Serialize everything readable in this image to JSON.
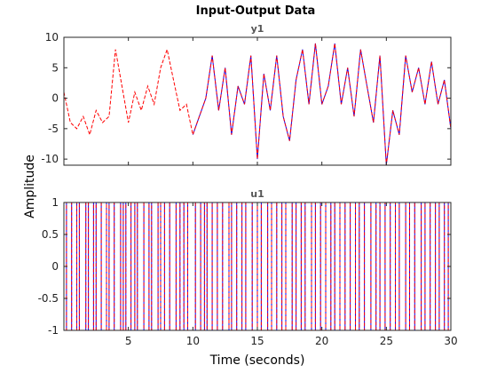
{
  "chart_data": {
    "type": "line",
    "title": "Input-Output Data",
    "xlabel": "Time (seconds)",
    "ylabel": "Amplitude",
    "xlim": [
      0,
      30
    ],
    "xticks": [
      "5",
      "10",
      "15",
      "20",
      "25",
      "30"
    ],
    "colors": {
      "series1": "#0000ff",
      "series2": "#ff0000",
      "axes": "#262626"
    },
    "panels": [
      {
        "subtitle": "y1",
        "ylim": [
          -11,
          10
        ],
        "yticks": [
          "10",
          "5",
          "0",
          "-5",
          "-10"
        ],
        "series": [
          {
            "style": "solid",
            "color": "#0000ff",
            "x": [
              10,
              10.5,
              11,
              11.5,
              12,
              12.5,
              13,
              13.5,
              14,
              14.5,
              15,
              15.5,
              16,
              16.5,
              17,
              17.5,
              18,
              18.5,
              19,
              19.5,
              20,
              20.5,
              21,
              21.5,
              22,
              22.5,
              23,
              23.5,
              24,
              24.5,
              25,
              25.5,
              26,
              26.5,
              27,
              27.5,
              28,
              28.5,
              29,
              29.5,
              30
            ],
            "y": [
              -6,
              -3,
              0,
              7,
              -2,
              5,
              -6,
              2,
              -1,
              7,
              -10,
              4,
              -2,
              7,
              -3,
              -7,
              3,
              8,
              -1,
              9,
              -1,
              2,
              9,
              -1,
              5,
              -3,
              8,
              2,
              -4,
              7,
              -11,
              -2,
              -6,
              7,
              1,
              5,
              -1,
              6,
              -1,
              3,
              -5
            ]
          },
          {
            "style": "dashed",
            "color": "#ff0000",
            "x": [
              0,
              0.5,
              1,
              1.5,
              2,
              2.5,
              3,
              3.5,
              4,
              4.5,
              5,
              5.5,
              6,
              6.5,
              7,
              7.5,
              8,
              8.5,
              9,
              9.5,
              10,
              10.5,
              11,
              11.5,
              12,
              12.5,
              13,
              13.5,
              14,
              14.5,
              15,
              15.5,
              16,
              16.5,
              17,
              17.5,
              18,
              18.5,
              19,
              19.5,
              20,
              20.5,
              21,
              21.5,
              22,
              22.5,
              23,
              23.5,
              24,
              24.5,
              25,
              25.5,
              26,
              26.5,
              27,
              27.5,
              28,
              28.5,
              29,
              29.5,
              30
            ],
            "y": [
              1,
              -4,
              -5,
              -3,
              -6,
              -2,
              -4,
              -3,
              8,
              2,
              -4,
              1,
              -2,
              2,
              -1,
              5,
              8,
              3,
              -2,
              -1,
              -6,
              -3,
              0,
              7,
              -2,
              5,
              -6,
              2,
              -1,
              7,
              -10,
              4,
              -2,
              7,
              -3,
              -7,
              3,
              8,
              -1,
              9,
              -1,
              2,
              9,
              -1,
              5,
              -3,
              8,
              2,
              -4,
              7,
              -11,
              -2,
              -6,
              7,
              1,
              5,
              -1,
              6,
              -1,
              3,
              -5
            ]
          }
        ]
      },
      {
        "subtitle": "u1",
        "ylim": [
          -1,
          1
        ],
        "yticks": [
          "1",
          "0.5",
          "0",
          "-0.5",
          "-1"
        ],
        "switch_times": [
          0.2,
          0.6,
          1.0,
          1.2,
          1.7,
          1.9,
          2.3,
          2.5,
          2.9,
          3.3,
          3.5,
          3.9,
          4.4,
          4.6,
          4.8,
          5.2,
          5.5,
          5.7,
          6.2,
          6.6,
          6.8,
          7.3,
          7.5,
          7.8,
          8.2,
          8.7,
          9.0,
          9.3,
          9.6,
          10.2,
          10.6,
          10.9,
          11.1,
          11.5,
          11.9,
          12.3,
          12.8,
          13.0,
          13.4,
          13.8,
          14.1,
          14.6,
          15.0,
          15.3,
          15.8,
          16.1,
          16.5,
          16.9,
          17.2,
          17.7,
          18.0,
          18.4,
          18.7,
          19.2,
          19.5,
          19.9,
          20.3,
          20.7,
          21.0,
          21.4,
          21.8,
          22.2,
          22.6,
          22.9,
          23.3,
          23.8,
          24.2,
          24.5,
          24.9,
          25.3,
          25.7,
          26.0,
          26.5,
          26.8,
          27.2,
          27.7,
          28.0,
          28.4,
          28.8,
          29.1,
          29.5,
          29.8
        ],
        "start_level": 1
      }
    ]
  }
}
